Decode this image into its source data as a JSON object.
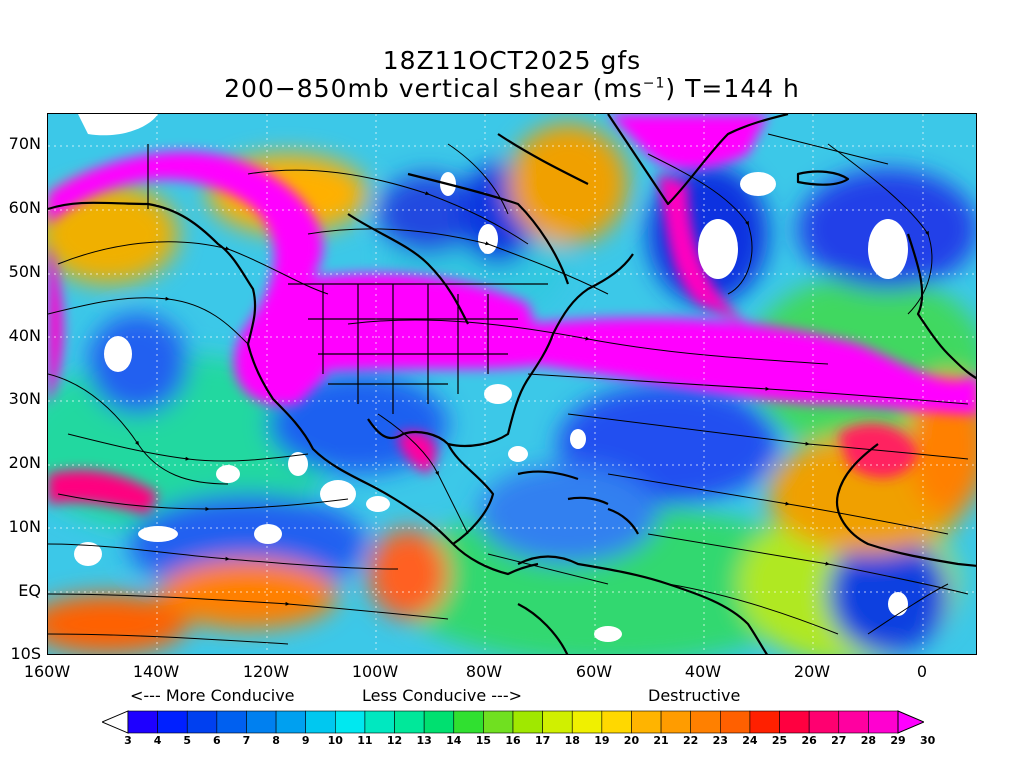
{
  "title": {
    "line1": "18Z11OCT2025 gfs",
    "line2_prefix": "200−850mb vertical shear (ms",
    "line2_sup": "−1",
    "line2_suffix": ") T=144 h"
  },
  "axes": {
    "lat_labels": [
      "70N",
      "60N",
      "50N",
      "40N",
      "30N",
      "20N",
      "10N",
      "EQ",
      "10S"
    ],
    "lat_values": [
      70,
      60,
      50,
      40,
      30,
      20,
      10,
      0,
      -10
    ],
    "lon_labels": [
      "160W",
      "140W",
      "120W",
      "100W",
      "80W",
      "60W",
      "40W",
      "20W",
      "0"
    ],
    "lon_values": [
      -160,
      -140,
      -120,
      -100,
      -80,
      -60,
      -40,
      -20,
      0
    ],
    "lat_range": [
      -10,
      75
    ],
    "lon_range": [
      -160,
      10
    ]
  },
  "legend": {
    "conducive_left": "<--- More Conducive",
    "conducive_mid": "Less Conducive --->",
    "destructive": "Destructive",
    "labels": [
      "3",
      "4",
      "5",
      "6",
      "7",
      "8",
      "9",
      "10",
      "11",
      "12",
      "13",
      "14",
      "15",
      "16",
      "17",
      "18",
      "19",
      "20",
      "21",
      "22",
      "23",
      "24",
      "25",
      "26",
      "27",
      "28",
      "29",
      "30"
    ],
    "colors": [
      "#ffffff",
      "#1e00ff",
      "#0020ff",
      "#0040f0",
      "#0060f0",
      "#0080f0",
      "#00a0f0",
      "#00c8f0",
      "#00e8f0",
      "#00e8c0",
      "#00e89a",
      "#00e070",
      "#30e030",
      "#70e020",
      "#a0e800",
      "#d0f000",
      "#f0f000",
      "#ffd800",
      "#ffb400",
      "#ff9c00",
      "#ff8000",
      "#ff6000",
      "#ff2000",
      "#ff0040",
      "#ff0070",
      "#ff00a0",
      "#ff00d0",
      "#ff00ff"
    ]
  },
  "colors": {
    "land_outline": "#000000",
    "strong_shear": "#ff00ff"
  }
}
